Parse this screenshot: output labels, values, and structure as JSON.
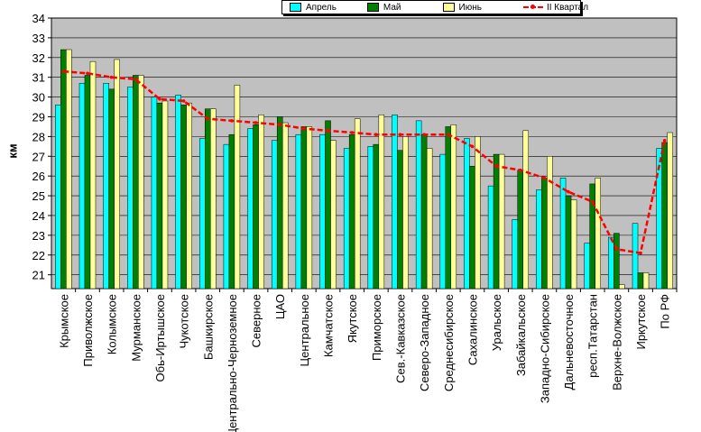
{
  "chart_data": {
    "type": "bar",
    "ylabel": "км",
    "ylim": [
      20.3,
      34
    ],
    "yticks": [
      21,
      22,
      23,
      24,
      25,
      26,
      27,
      28,
      29,
      30,
      31,
      32,
      33,
      34
    ],
    "grid": true,
    "legend_position": "top",
    "categories": [
      "Крымское",
      "Приволжское",
      "Колымское",
      "Мурманское",
      "Обь-Иртышское",
      "Чукотское",
      "Башкирское",
      "Центрально-Черноземное",
      "Северное",
      "ЦАО",
      "Центральное",
      "Камчатское",
      "Якутское",
      "Приморское",
      "Сев.-Кавказское",
      "Северо-Западное",
      "Среднесибирское",
      "Сахалинское",
      "Уральское",
      "Забайкальское",
      "Западно-Сибирское",
      "Дальневосточное",
      "респ.Татарстан",
      "Верхне-Волжское",
      "Иркутское",
      "По РФ"
    ],
    "series": [
      {
        "name": "Апрель",
        "color": "#00ffff",
        "values": [
          29.6,
          30.7,
          30.7,
          30.5,
          30.0,
          30.1,
          27.9,
          27.6,
          28.4,
          27.8,
          28.1,
          28.1,
          27.4,
          27.5,
          29.1,
          28.8,
          27.1,
          27.9,
          25.5,
          23.8,
          25.3,
          25.9,
          22.6,
          22.9,
          23.6,
          27.4
        ]
      },
      {
        "name": "Май",
        "color": "#008000",
        "values": [
          32.4,
          31.1,
          30.4,
          31.1,
          29.7,
          29.6,
          29.4,
          28.1,
          28.6,
          29.0,
          28.5,
          28.8,
          28.1,
          27.6,
          27.3,
          28.1,
          28.5,
          26.5,
          27.1,
          26.3,
          25.9,
          25.0,
          25.6,
          23.1,
          21.1,
          27.7
        ]
      },
      {
        "name": "Июнь",
        "color": "#ffff99",
        "values": [
          32.4,
          31.8,
          31.9,
          31.1,
          29.8,
          29.7,
          29.4,
          30.6,
          29.1,
          28.7,
          28.5,
          27.8,
          28.9,
          29.1,
          28.0,
          27.4,
          28.6,
          28.0,
          27.1,
          28.3,
          27.0,
          24.8,
          25.9,
          20.5,
          21.1,
          28.2
        ]
      },
      {
        "name": "II Квартал",
        "color": "#ff0000",
        "type": "line",
        "values": [
          31.3,
          31.2,
          31.0,
          30.9,
          29.9,
          29.8,
          28.9,
          28.8,
          28.7,
          28.6,
          28.4,
          28.3,
          28.2,
          28.1,
          28.1,
          28.1,
          28.1,
          27.5,
          26.5,
          26.3,
          25.9,
          25.2,
          24.7,
          22.3,
          22.1,
          27.8
        ]
      }
    ]
  }
}
